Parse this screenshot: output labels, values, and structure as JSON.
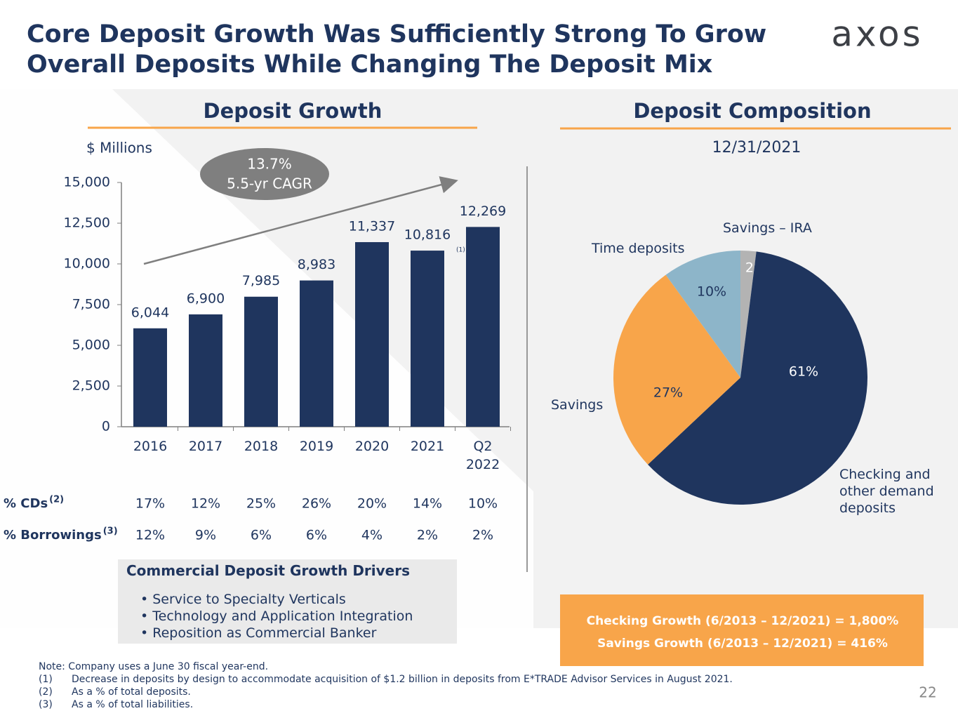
{
  "title": [
    "Core Deposit Growth Was Sufficiently Strong To Grow",
    "Overall Deposits While Changing The Deposit Mix"
  ],
  "logo": "axos",
  "chart_data": [
    {
      "type": "bar",
      "title": "Deposit Growth",
      "y_label": "$ Millions",
      "categories": [
        "2016",
        "2017",
        "2018",
        "2019",
        "2020",
        "2021",
        "Q2 2022"
      ],
      "values": [
        6044,
        6900,
        7985,
        8983,
        11337,
        10816,
        12269
      ],
      "value_labels": [
        "6,044",
        "6,900",
        "7,985",
        "8,983",
        "11,337",
        "10,816",
        "12,269"
      ],
      "footnote_marks": [
        null,
        null,
        null,
        null,
        null,
        "(1)",
        null
      ],
      "color": "#1f355e",
      "ylim": [
        0,
        15000
      ],
      "yticks": [
        0,
        {
          "value": 2500,
          "label": "2,500"
        },
        {
          "value": 5000,
          "label": "5,000"
        },
        {
          "value": 7500,
          "label": "7,500"
        },
        {
          "value": 10000,
          "label": "10,000"
        },
        {
          "value": 12500,
          "label": "12,500"
        },
        {
          "value": 15000,
          "label": "15,000"
        }
      ],
      "grid": false,
      "annotation": [
        "13.7%",
        "5.5-yr CAGR"
      ]
    },
    {
      "type": "pie",
      "title": "Deposit Composition",
      "subtitle": "12/31/2021",
      "categories": [
        "Savings – IRA",
        "Checking and other demand deposits",
        "Savings",
        "Time deposits"
      ],
      "values": [
        2,
        61,
        27,
        10
      ],
      "value_labels": [
        "2%",
        "61%",
        "27%",
        "10%"
      ],
      "colors": [
        "#b3b3b3",
        "#1f355e",
        "#f8a54a",
        "#8db5c9"
      ]
    }
  ],
  "table": {
    "rows": [
      {
        "label": "% CDs",
        "note": "(2)",
        "cells": [
          "17%",
          "12%",
          "25%",
          "26%",
          "20%",
          "14%",
          "10%"
        ]
      },
      {
        "label": "% Borrowings",
        "note": "(3)",
        "cells": [
          "12%",
          "9%",
          "6%",
          "6%",
          "4%",
          "2%",
          "2%"
        ]
      }
    ]
  },
  "drivers": {
    "title": "Commercial Deposit Growth Drivers",
    "items": [
      "Service to Specialty Verticals",
      "Technology and Application Integration",
      "Reposition as Commercial Banker"
    ]
  },
  "growth_box": [
    "Checking Growth (6/2013 – 12/2021) = 1,800%",
    "Savings Growth (6/2013 – 12/2021) = 416%"
  ],
  "footnotes": {
    "note": "Note: Company uses a June 30 fiscal year-end.",
    "items": [
      {
        "num": "(1)",
        "text": "Decrease in deposits by design to accommodate acquisition of $1.2 billion in deposits from E*TRADE Advisor Services in August 2021."
      },
      {
        "num": "(2)",
        "text": "As a % of total deposits."
      },
      {
        "num": "(3)",
        "text": "As a % of total liabilities."
      }
    ]
  },
  "page_number": "22"
}
